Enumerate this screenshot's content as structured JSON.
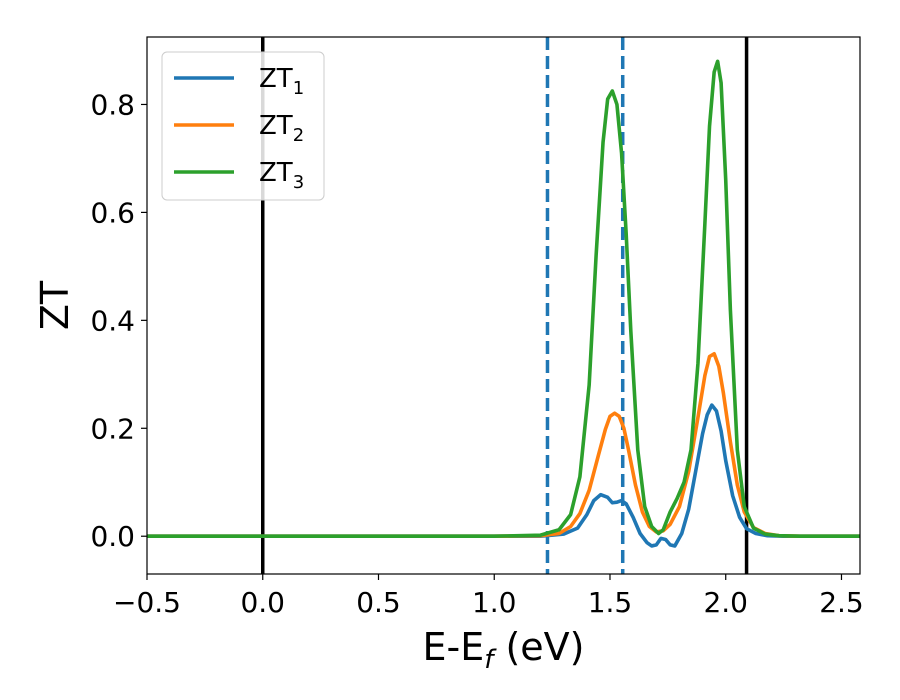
{
  "chart_data": {
    "type": "line",
    "xlabel": "E-E_f (eV)",
    "ylabel": "ZT",
    "xlim": [
      -0.5,
      2.58
    ],
    "ylim": [
      -0.07,
      0.925
    ],
    "xticks": [
      -0.5,
      0.0,
      0.5,
      1.0,
      1.5,
      2.0,
      2.5
    ],
    "xtick_labels": [
      "−0.5",
      "0.0",
      "0.5",
      "1.0",
      "1.5",
      "2.0",
      "2.5"
    ],
    "yticks": [
      0.0,
      0.2,
      0.4,
      0.6,
      0.8
    ],
    "ytick_labels": [
      "0.0",
      "0.2",
      "0.4",
      "0.6",
      "0.8"
    ],
    "grid": false,
    "legend_position": "top-left",
    "vlines": [
      {
        "x": 0.0,
        "color": "#000000",
        "style": "solid"
      },
      {
        "x": 2.09,
        "color": "#000000",
        "style": "solid"
      },
      {
        "x": 1.23,
        "color": "#1f77b4",
        "style": "dashed"
      },
      {
        "x": 1.555,
        "color": "#1f77b4",
        "style": "dashed"
      }
    ],
    "series": [
      {
        "name": "ZT",
        "subscript": "1",
        "color": "#1f77b4",
        "x": [
          -0.5,
          1.0,
          1.2,
          1.3,
          1.36,
          1.4,
          1.43,
          1.46,
          1.49,
          1.51,
          1.53,
          1.55,
          1.57,
          1.6,
          1.63,
          1.66,
          1.68,
          1.7,
          1.72,
          1.74,
          1.76,
          1.78,
          1.81,
          1.84,
          1.87,
          1.9,
          1.92,
          1.94,
          1.96,
          1.98,
          2.0,
          2.03,
          2.06,
          2.09,
          2.13,
          2.18,
          2.25,
          2.35,
          2.58
        ],
        "y": [
          0.0,
          0.0,
          0.0,
          0.004,
          0.015,
          0.04,
          0.066,
          0.077,
          0.072,
          0.062,
          0.063,
          0.066,
          0.06,
          0.035,
          0.005,
          -0.012,
          -0.018,
          -0.016,
          -0.004,
          -0.006,
          -0.016,
          -0.018,
          0.005,
          0.05,
          0.12,
          0.19,
          0.225,
          0.243,
          0.232,
          0.195,
          0.14,
          0.075,
          0.035,
          0.014,
          0.005,
          0.001,
          0.0,
          0.0,
          0.0
        ]
      },
      {
        "name": "ZT",
        "subscript": "2",
        "color": "#ff7f0e",
        "x": [
          -0.5,
          1.0,
          1.2,
          1.28,
          1.33,
          1.37,
          1.41,
          1.45,
          1.48,
          1.5,
          1.52,
          1.54,
          1.56,
          1.58,
          1.61,
          1.64,
          1.67,
          1.7,
          1.73,
          1.76,
          1.8,
          1.84,
          1.88,
          1.91,
          1.93,
          1.95,
          1.97,
          1.99,
          2.02,
          2.05,
          2.08,
          2.12,
          2.17,
          2.23,
          2.32,
          2.58
        ],
        "y": [
          0.0,
          0.0,
          0.001,
          0.005,
          0.018,
          0.042,
          0.085,
          0.15,
          0.198,
          0.222,
          0.228,
          0.222,
          0.2,
          0.16,
          0.095,
          0.045,
          0.018,
          0.008,
          0.01,
          0.022,
          0.055,
          0.12,
          0.22,
          0.298,
          0.333,
          0.338,
          0.315,
          0.265,
          0.175,
          0.095,
          0.045,
          0.016,
          0.005,
          0.001,
          0.0,
          0.0
        ]
      },
      {
        "name": "ZT",
        "subscript": "3",
        "color": "#2ca02c",
        "x": [
          -0.5,
          1.0,
          1.2,
          1.28,
          1.33,
          1.37,
          1.41,
          1.44,
          1.47,
          1.49,
          1.51,
          1.53,
          1.55,
          1.57,
          1.59,
          1.62,
          1.65,
          1.68,
          1.71,
          1.73,
          1.76,
          1.79,
          1.82,
          1.85,
          1.88,
          1.91,
          1.93,
          1.95,
          1.965,
          1.98,
          2.0,
          2.02,
          2.05,
          2.08,
          2.12,
          2.17,
          2.23,
          2.32,
          2.58
        ],
        "y": [
          0.0,
          0.0,
          0.002,
          0.012,
          0.04,
          0.11,
          0.28,
          0.52,
          0.73,
          0.81,
          0.825,
          0.8,
          0.71,
          0.56,
          0.38,
          0.16,
          0.055,
          0.018,
          0.005,
          0.012,
          0.045,
          0.07,
          0.1,
          0.16,
          0.32,
          0.58,
          0.76,
          0.86,
          0.88,
          0.84,
          0.66,
          0.42,
          0.16,
          0.055,
          0.015,
          0.004,
          0.001,
          0.0,
          0.0
        ]
      }
    ]
  }
}
